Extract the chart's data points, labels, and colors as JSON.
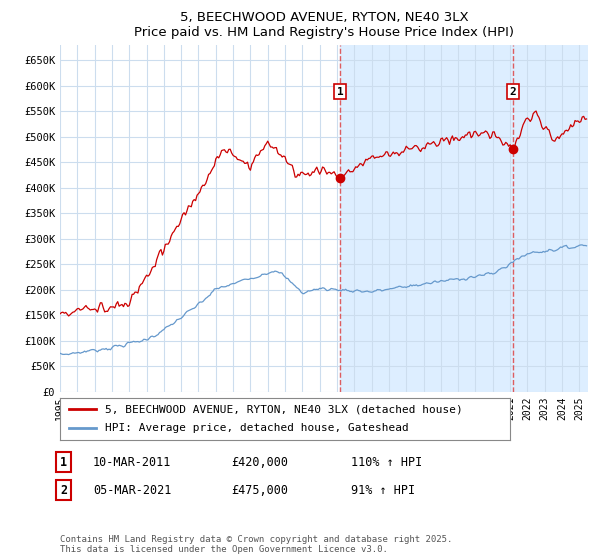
{
  "title": "5, BEECHWOOD AVENUE, RYTON, NE40 3LX",
  "subtitle": "Price paid vs. HM Land Registry's House Price Index (HPI)",
  "ylim": [
    0,
    680000
  ],
  "yticks": [
    0,
    50000,
    100000,
    150000,
    200000,
    250000,
    300000,
    350000,
    400000,
    450000,
    500000,
    550000,
    600000,
    650000
  ],
  "xlim_start": 1995.0,
  "xlim_end": 2025.5,
  "bg_color": "#ffffff",
  "plot_bg_color": "#ffffff",
  "shade_color": "#ddeeff",
  "grid_color": "#ccddee",
  "red_line_color": "#cc0000",
  "blue_line_color": "#6699cc",
  "sale1_x": 2011.17,
  "sale1_y": 420000,
  "sale2_x": 2021.17,
  "sale2_y": 475000,
  "vline_color": "#dd4444",
  "label1_date": "10-MAR-2011",
  "label1_price": "£420,000",
  "label1_hpi": "110% ↑ HPI",
  "label2_date": "05-MAR-2021",
  "label2_price": "£475,000",
  "label2_hpi": "91% ↑ HPI",
  "legend_line1": "5, BEECHWOOD AVENUE, RYTON, NE40 3LX (detached house)",
  "legend_line2": "HPI: Average price, detached house, Gateshead",
  "footer": "Contains HM Land Registry data © Crown copyright and database right 2025.\nThis data is licensed under the Open Government Licence v3.0."
}
